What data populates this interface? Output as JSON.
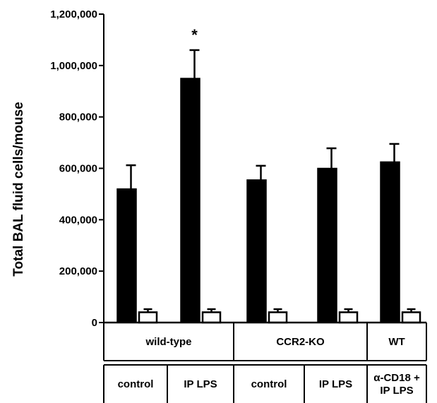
{
  "chart_data": {
    "type": "bar",
    "ylabel": "Total BAL fluid cells/mouse",
    "ylim": [
      0,
      1200000
    ],
    "yticks": [
      0,
      200000,
      400000,
      600000,
      800000,
      1000000,
      1200000
    ],
    "ytick_labels": [
      "0",
      "200,000",
      "400,000",
      "600,000",
      "800,000",
      "1,000,000",
      "1,200,000"
    ],
    "groups": [
      {
        "label": "wild-type",
        "conditions": [
          "control",
          "IP LPS"
        ]
      },
      {
        "label": "CCR2-KO",
        "conditions": [
          "control",
          "IP LPS"
        ]
      },
      {
        "label": "WT",
        "conditions": [
          "α-CD18 +\nIP LPS"
        ]
      }
    ],
    "categories": [
      "control",
      "IP LPS",
      "control",
      "IP LPS",
      "α-CD18 +\nIP LPS"
    ],
    "series": [
      {
        "color": "#000000",
        "values": [
          520000,
          950000,
          555000,
          600000,
          625000
        ],
        "errors": [
          92000,
          110000,
          55000,
          78000,
          70000
        ]
      },
      {
        "color": "#ffffff",
        "values": [
          40000,
          40000,
          40000,
          40000,
          40000
        ],
        "errors": [
          12000,
          12000,
          12000,
          12000,
          12000
        ]
      }
    ],
    "annotations": [
      {
        "category_index": 1,
        "text": "*"
      }
    ],
    "grid": false,
    "legend": "none"
  }
}
